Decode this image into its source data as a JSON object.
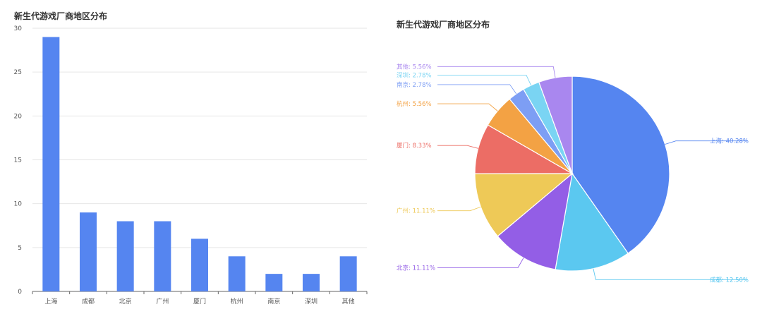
{
  "chart_data": [
    {
      "type": "bar",
      "title": "新生代游戏厂商地区分布",
      "categories": [
        "上海",
        "成都",
        "北京",
        "广州",
        "厦门",
        "杭州",
        "南京",
        "深圳",
        "其他"
      ],
      "values": [
        29,
        9,
        8,
        8,
        6,
        4,
        2,
        2,
        4
      ],
      "ylim": [
        0,
        30
      ],
      "yticks": [
        0,
        5,
        10,
        15,
        20,
        25,
        30
      ],
      "grid": true,
      "color": "#5585f0"
    },
    {
      "type": "pie",
      "title": "新生代游戏厂商地区分布",
      "slices": [
        {
          "label": "上海",
          "value": 40.28,
          "text": "上海: 40.28%",
          "color": "#5585f0"
        },
        {
          "label": "成都",
          "value": 12.5,
          "text": "成都: 12.50%",
          "color": "#5bc8f0"
        },
        {
          "label": "北京",
          "value": 11.11,
          "text": "北京: 11.11%",
          "color": "#935ee6"
        },
        {
          "label": "广州",
          "value": 11.11,
          "text": "广州: 11.11%",
          "color": "#eec957"
        },
        {
          "label": "厦门",
          "value": 8.33,
          "text": "厦门: 8.33%",
          "color": "#ec6d65"
        },
        {
          "label": "杭州",
          "value": 5.56,
          "text": "杭州: 5.56%",
          "color": "#f3a244"
        },
        {
          "label": "南京",
          "value": 2.78,
          "text": "南京: 2.78%",
          "color": "#7d9ef4"
        },
        {
          "label": "深圳",
          "value": 2.78,
          "text": "深圳: 2.78%",
          "color": "#7ad4f3"
        },
        {
          "label": "其他",
          "value": 5.56,
          "text": "其他: 5.56%",
          "color": "#a987ef"
        }
      ]
    }
  ]
}
